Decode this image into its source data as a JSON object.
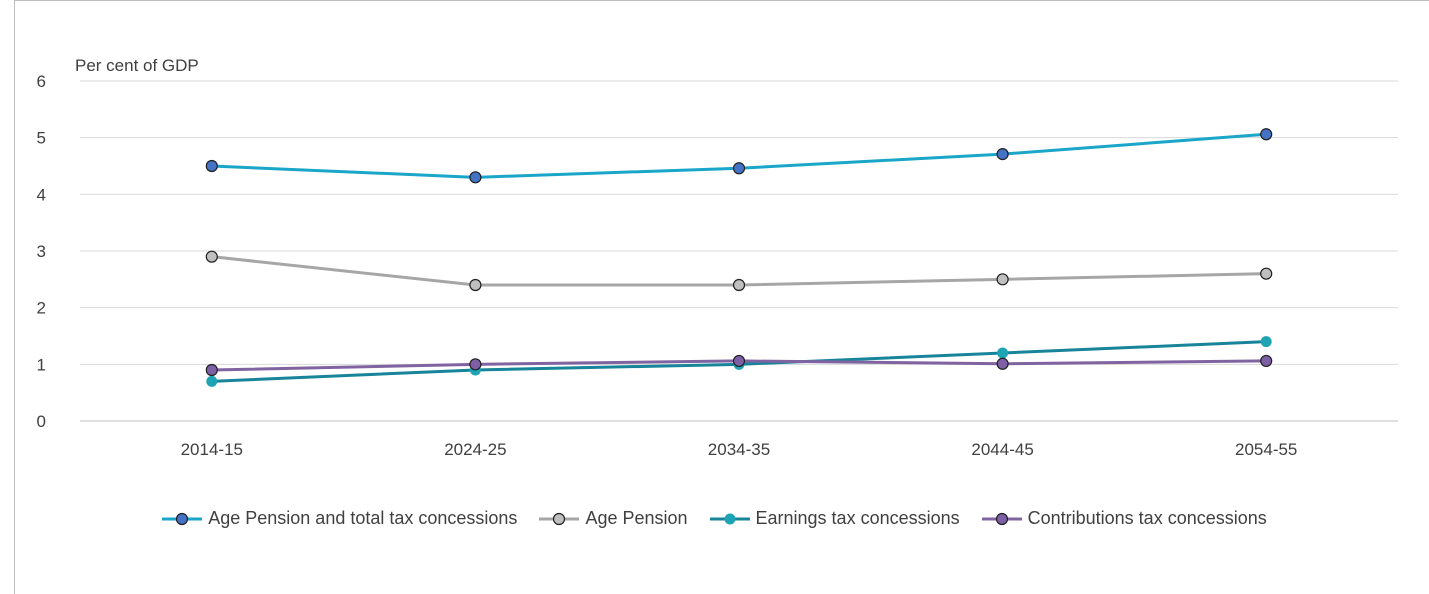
{
  "chart_data": {
    "type": "line",
    "ylabel": "Per cent of GDP",
    "categories": [
      "2014-15",
      "2024-25",
      "2034-35",
      "2044-45",
      "2054-55"
    ],
    "ylim": [
      0,
      6
    ],
    "yticks": [
      0,
      1,
      2,
      3,
      4,
      5,
      6
    ],
    "grid": "horizontal",
    "legend_position": "bottom",
    "series": [
      {
        "name": "Age Pension and total tax concessions",
        "values": [
          4.5,
          4.3,
          4.46,
          4.71,
          5.06
        ],
        "line_color": "#1aa6c8",
        "marker_color": "#4472c4"
      },
      {
        "name": "Age Pension",
        "values": [
          2.9,
          2.4,
          2.4,
          2.5,
          2.6
        ],
        "line_color": "#a6a6a6",
        "marker_color": "#bfbfbf"
      },
      {
        "name": "Earnings tax concessions",
        "values": [
          0.7,
          0.9,
          1.0,
          1.2,
          1.4
        ],
        "line_color": "#17849a",
        "marker_color": "#1ea3b5"
      },
      {
        "name": "Contributions tax concessions",
        "values": [
          0.9,
          1.0,
          1.06,
          1.01,
          1.06
        ],
        "line_color": "#8064a2",
        "marker_color": "#7d5fa6"
      }
    ]
  }
}
